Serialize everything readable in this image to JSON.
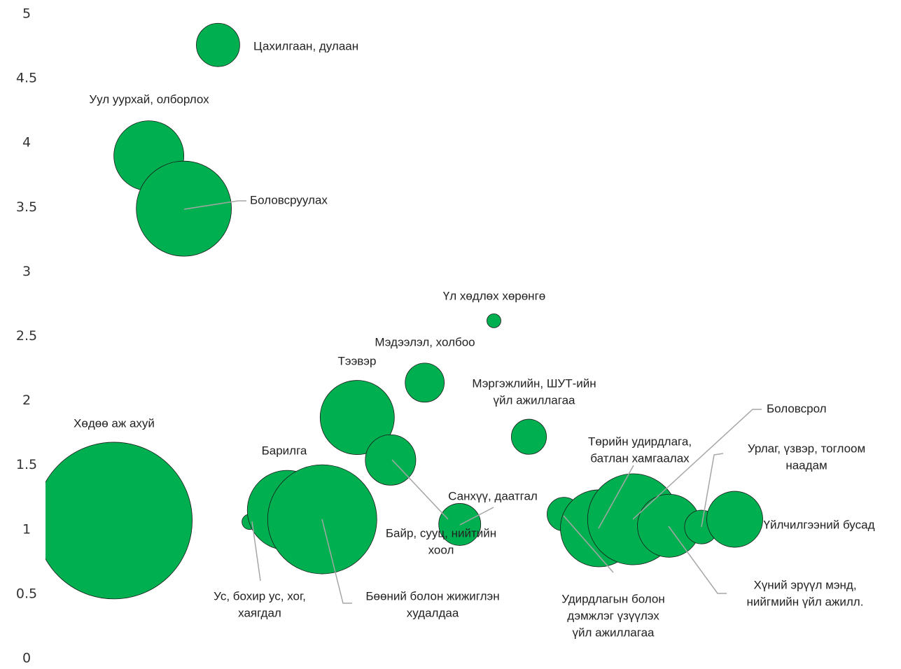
{
  "chart_data": {
    "type": "bubble",
    "labels": [
      [
        "Цахилгаан, дулаан"
      ],
      [
        "Уул уурхай, олборлох"
      ],
      [
        "Боловсруулах"
      ],
      [
        "Үл хөдлөх хөрөнгө"
      ],
      [
        "Мэдээлэл, холбоо"
      ],
      [
        "Тээвэр"
      ],
      [
        "Мэргэжлийн, ШУТ-ийн",
        "үйл ажиллагаа"
      ],
      [
        "Байр, сууц, нийтийн",
        "хоол"
      ],
      [
        "Хөдөө аж ахуй"
      ],
      [
        "Ус, бохир ус, хог,",
        "хаягдал"
      ],
      [
        "Барилга"
      ],
      [
        "Бөөний болон жижиглэн",
        "худалдаа"
      ],
      [
        "Санхүү, даатгал"
      ],
      [
        "Удирдлагын болон",
        "дэмжлэг үзүүлэх",
        "үйл ажиллагаа"
      ],
      [
        "Төрийн удирдлага,",
        "батлан хамгаалах"
      ],
      [
        "Боловсрол"
      ],
      [
        "Хүний эрүүл мэнд,",
        "нийгмийн үйл ажилл."
      ],
      [
        "Урлаг, үзвэр, тоглоом",
        "наадам"
      ],
      [
        "Үйлчилгээний бусад"
      ]
    ],
    "x": [
      20.2,
      12.1,
      16.2,
      52.5,
      44.4,
      36.5,
      56.6,
      40.4,
      8.0,
      23.9,
      28.3,
      32.4,
      48.5,
      60.7,
      64.8,
      68.8,
      73.0,
      76.8,
      80.7
    ],
    "values": [
      4.76,
      3.9,
      3.49,
      2.62,
      2.14,
      1.87,
      1.72,
      1.54,
      1.07,
      1.06,
      1.15,
      1.08,
      1.04,
      1.12,
      1.01,
      1.08,
      1.03,
      1.02,
      1.08
    ],
    "sizes": [
      9.6,
      25,
      46.2,
      1,
      7.8,
      28.1,
      6.3,
      13,
      125.4,
      1.2,
      32.5,
      60.8,
      9,
      5.8,
      30.3,
      42.3,
      20.3,
      5.8,
      16
    ],
    "color": "#00b050",
    "xlim": [
      0,
      100
    ],
    "ylim": [
      0,
      5
    ],
    "yticks": [
      0,
      0.5,
      1,
      1.5,
      2,
      2.5,
      3,
      3.5,
      4,
      4.5,
      5
    ]
  }
}
